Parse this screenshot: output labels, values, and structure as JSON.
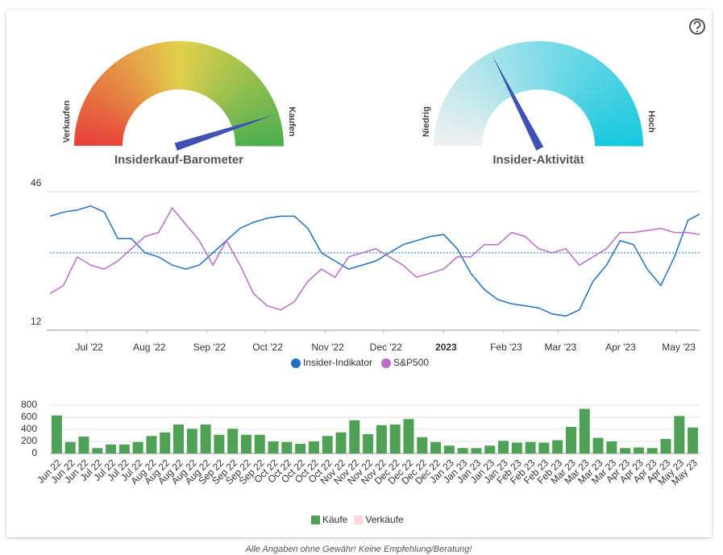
{
  "chart_data": [
    {
      "type": "gauge",
      "title": "Insiderkauf-Barometer",
      "min_label": "Verkaufen",
      "max_label": "Kaufen",
      "range": [
        0,
        100
      ],
      "value": 90,
      "colors": [
        "#e8413a",
        "#e2cf4c",
        "#4caf50"
      ],
      "needle_color": "#3f51b5"
    },
    {
      "type": "gauge",
      "title": "Insider-Aktivität",
      "min_label": "Niedrig",
      "max_label": "Hoch",
      "range": [
        0,
        100
      ],
      "value": 35,
      "colors": [
        "#f0f0f0",
        "#17c8de"
      ],
      "needle_color": "#3f51b5"
    },
    {
      "type": "line",
      "x": [
        0,
        7,
        14,
        21,
        28,
        35,
        42,
        49,
        56,
        63,
        70,
        77,
        84,
        91,
        98,
        105,
        112,
        119,
        126,
        133,
        140,
        147,
        154,
        161,
        168,
        175,
        182,
        189,
        196,
        203,
        210,
        217,
        224,
        231,
        238,
        245,
        252,
        259,
        266,
        273,
        280,
        287,
        294,
        301,
        308,
        315,
        322,
        329,
        335
      ],
      "xlim": [
        0,
        335
      ],
      "xticks": [
        {
          "value": 19,
          "label": "Jul '22"
        },
        {
          "value": 50,
          "label": "Aug '22"
        },
        {
          "value": 81,
          "label": "Sep '22"
        },
        {
          "value": 111,
          "label": "Oct '22"
        },
        {
          "value": 142,
          "label": "Nov '22"
        },
        {
          "value": 172,
          "label": "Dec '22"
        },
        {
          "value": 203,
          "label": "2023"
        },
        {
          "value": 234,
          "label": "Feb '23"
        },
        {
          "value": 262,
          "label": "Mar '23"
        },
        {
          "value": 293,
          "label": "Apr '23"
        },
        {
          "value": 323,
          "label": "May '23"
        }
      ],
      "bold_tick": 6,
      "ylim": [
        12,
        46
      ],
      "yticks": [
        12,
        46
      ],
      "reference_line": 31,
      "series": [
        {
          "name": "Insider-Indikator",
          "color": "#1f6fc5",
          "values": [
            40,
            41,
            41.5,
            42.5,
            41,
            34.5,
            34.5,
            31,
            30,
            28,
            27,
            28,
            31,
            34,
            37,
            38.5,
            39.5,
            40,
            40,
            37,
            31,
            29,
            27,
            28,
            29,
            31,
            33,
            34,
            35,
            35.5,
            32,
            26,
            22,
            19.5,
            18.5,
            18,
            17.5,
            16,
            15.5,
            17,
            24,
            28,
            34,
            33,
            27,
            23,
            30,
            39,
            40.5
          ]
        },
        {
          "name": "S&P500",
          "color": "#b86cc8",
          "values": [
            21,
            23,
            30,
            28,
            27,
            29,
            32,
            35,
            36,
            42,
            38,
            34,
            28,
            34,
            28,
            21,
            18,
            17,
            19,
            24,
            27,
            25,
            30,
            31,
            32,
            30,
            28,
            25,
            26,
            27,
            30,
            30,
            33,
            33,
            36,
            35,
            32,
            31,
            32,
            28,
            30,
            32,
            36,
            36,
            36.5,
            37,
            36,
            36,
            35.5
          ]
        }
      ]
    },
    {
      "type": "bar",
      "categories": [
        "Jun 22",
        "Jun 22",
        "Jun 22",
        "Jul 22",
        "Jul 22",
        "Jul 22",
        "Jul 22",
        "Aug 22",
        "Aug 22",
        "Aug 22",
        "Aug 22",
        "Aug 22",
        "Sep 22",
        "Sep 22",
        "Sep 22",
        "Sep 22",
        "Oct 22",
        "Oct 22",
        "Oct 22",
        "Oct 22",
        "Oct 22",
        "Nov 22",
        "Nov 22",
        "Nov 22",
        "Nov 22",
        "Dec 22",
        "Dec 22",
        "Dec 22",
        "Dec 22",
        "Jan 23",
        "Jan 23",
        "Jan 23",
        "Jan 23",
        "Jan 23",
        "Feb 23",
        "Feb 23",
        "Feb 23",
        "Feb 23",
        "Mar 23",
        "Mar 23",
        "Mar 23",
        "Mar 23",
        "Apr 23",
        "Apr 23",
        "Apr 23",
        "Apr 23",
        "May 23",
        "May 23"
      ],
      "ylim": [
        0,
        800
      ],
      "yticks": [
        0,
        200,
        400,
        600,
        800
      ],
      "series": [
        {
          "name": "Käufe",
          "color": "#4ea155",
          "values": [
            630,
            190,
            280,
            90,
            150,
            150,
            190,
            290,
            350,
            480,
            410,
            480,
            310,
            410,
            310,
            310,
            200,
            190,
            160,
            200,
            290,
            350,
            550,
            320,
            470,
            480,
            570,
            270,
            190,
            130,
            90,
            90,
            130,
            210,
            180,
            190,
            180,
            220,
            440,
            740,
            260,
            200,
            90,
            100,
            90,
            240,
            620,
            430
          ]
        },
        {
          "name": "Verkäufe",
          "color": "#f8d8d8",
          "hidden": true
        }
      ]
    }
  ],
  "footer": "Alle Angaben ohne Gewähr! Keine Empfehlung/Beratung!"
}
